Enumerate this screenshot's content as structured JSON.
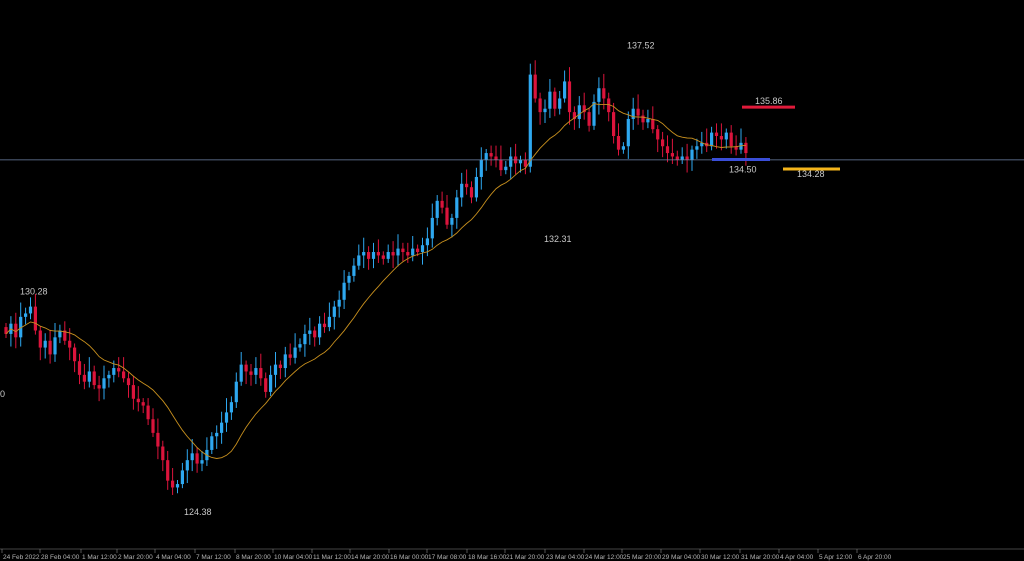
{
  "colors": {
    "background": "#000000",
    "bull": "#2ea8f0",
    "bear": "#dc143c",
    "ma": "#c8901e",
    "hline": "#6f84a8",
    "marker_red": "#e01a3a",
    "marker_blue": "#3a4ed8",
    "marker_yellow": "#f5b51b",
    "axis": "#8a8a8a",
    "text": "#c8c8c8"
  },
  "chart_data": {
    "type": "candlestick",
    "moving_average": true,
    "horizontal_line": 134.4,
    "ylim": [
      123.7,
      138.5
    ],
    "x_ticks": [
      "24 Feb 2022",
      "28 Feb 04:00",
      "1 Mar 12:00",
      "2 Mar 20:00",
      "4 Mar 04:00",
      "7 Mar 12:00",
      "8 Mar 20:00",
      "10 Mar 04:00",
      "11 Mar 12:00",
      "14 Mar 20:00",
      "16 Mar 00:00",
      "17 Mar 08:00",
      "18 Mar 16:00",
      "21 Mar 20:00",
      "23 Mar 04:00",
      "24 Mar 12:00",
      "25 Mar 20:00",
      "29 Mar 04:00",
      "30 Mar 12:00",
      "31 Mar 20:00",
      "4 Apr 04:00",
      "5 Apr 12:00",
      "6 Apr 20:00"
    ],
    "annotations": [
      {
        "text": "130.28",
        "value": 130.28
      },
      {
        "text": "124.38",
        "value": 124.38
      },
      {
        "text": "132.31",
        "value": 132.31
      },
      {
        "text": "137.52",
        "value": 137.52
      },
      {
        "text": "135.86",
        "value": 135.86
      },
      {
        "text": "134.50",
        "value": 134.5
      },
      {
        "text": "134.28",
        "value": 134.28
      }
    ],
    "levels": [
      {
        "label": "135.86",
        "value": 135.86,
        "color": "#e01a3a"
      },
      {
        "label": "134.50",
        "value": 134.5,
        "color": "#3a4ed8"
      },
      {
        "label": "134.28",
        "value": 134.28,
        "color": "#f5b51b"
      }
    ],
    "edge_label": "0",
    "closes": [
      129.3,
      129.6,
      129.2,
      129.8,
      129.9,
      130.1,
      129.4,
      128.9,
      129.1,
      128.7,
      129.2,
      129.4,
      129.1,
      128.9,
      128.5,
      128.1,
      127.9,
      128.2,
      127.8,
      127.7,
      128.0,
      128.1,
      128.3,
      128.2,
      128.0,
      127.8,
      127.4,
      127.3,
      127.2,
      126.8,
      126.4,
      126.0,
      125.6,
      125.0,
      124.8,
      124.9,
      125.3,
      125.6,
      125.8,
      125.5,
      125.6,
      125.9,
      126.3,
      126.4,
      126.7,
      127.0,
      127.3,
      127.9,
      128.4,
      128.2,
      128.1,
      128.3,
      128.0,
      127.6,
      128.1,
      128.4,
      128.3,
      128.7,
      128.6,
      128.9,
      129.0,
      129.3,
      129.4,
      129.2,
      129.6,
      129.5,
      129.8,
      130.1,
      130.3,
      130.8,
      131.0,
      131.3,
      131.6,
      131.7,
      131.5,
      131.7,
      131.6,
      131.5,
      131.7,
      131.6,
      131.8,
      131.7,
      131.6,
      131.8,
      131.7,
      131.9,
      132.1,
      132.7,
      133.2,
      133.0,
      132.5,
      132.7,
      133.3,
      133.7,
      133.6,
      133.3,
      133.9,
      134.4,
      134.6,
      134.5,
      134.4,
      134.1,
      134.2,
      134.5,
      134.3,
      134.4,
      134.2,
      136.9,
      136.2,
      135.8,
      135.9,
      136.4,
      135.9,
      136.2,
      136.7,
      135.8,
      135.6,
      136.0,
      135.8,
      135.4,
      136.1,
      136.5,
      136.2,
      135.8,
      135.1,
      134.7,
      134.8,
      135.6,
      135.9,
      135.7,
      135.5,
      135.6,
      135.3,
      135.0,
      134.8,
      134.6,
      134.5,
      134.4,
      134.5,
      134.4,
      134.7,
      134.8,
      134.9,
      134.8,
      135.2,
      135.1,
      135.0,
      135.2,
      134.8,
      134.7,
      134.9,
      134.6
    ]
  }
}
